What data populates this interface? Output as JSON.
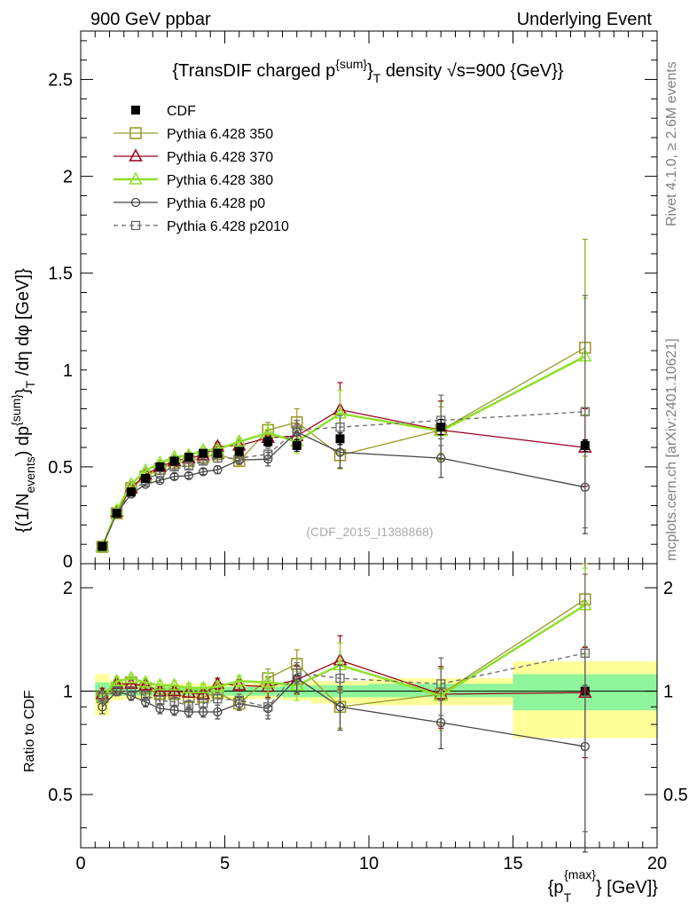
{
  "header": {
    "left": "900 GeV ppbar",
    "right": "Underlying Event"
  },
  "side_notes": {
    "rivet": "Rivet 4.1.0, ≥ 2.6M events",
    "mcplots": "mcplots.cern.ch [arXiv:2401.10621]"
  },
  "colors": {
    "cdf": "#000000",
    "p350": "#9a9a2a",
    "p370": "#99001a",
    "p380": "#8ee02a",
    "p0": "#444444",
    "p2010": "#666666",
    "band_inner": "#8ef59a",
    "band_outer": "#ffff9a"
  },
  "chart_data": [
    {
      "type": "line",
      "title": "{TransDIF charged p^{sum}_T density √s=900 {GeV}}",
      "title_parts": {
        "pre": "{TransDIF charged p",
        "sup": "{sum}",
        "mid": "}",
        "sub": "T",
        "post": " density √s=900 {GeV}}"
      },
      "ylabel": "{(1/N_events) dp^{sum}_T /dη dφ [GeV]}",
      "ylabel_parts": {
        "a": "{(1/N",
        "a_sub": "events",
        "b": ") dp",
        "b_sup": "{sum}",
        "c": "}",
        "c_sub": "T",
        "d": " /dη  dφ [GeV]}"
      },
      "xlim": [
        0,
        20
      ],
      "ylim": [
        0,
        2.75
      ],
      "yticks": [
        0.5,
        1,
        1.5,
        2,
        2.5
      ],
      "ytick_labels": [
        "0.5",
        "1",
        "1.5",
        "2",
        "2.5"
      ],
      "y0_label": "0",
      "watermark": "(CDF_2015_I1388868)",
      "legend_position": "top-left",
      "series": [
        {
          "key": "cdf",
          "name": "CDF",
          "marker": "filled-square",
          "line": "none",
          "x": [
            0.75,
            1.25,
            1.75,
            2.25,
            2.75,
            3.25,
            3.75,
            4.25,
            4.75,
            5.5,
            6.5,
            7.5,
            9.0,
            12.5,
            17.5
          ],
          "y": [
            0.09,
            0.26,
            0.37,
            0.44,
            0.5,
            0.53,
            0.55,
            0.57,
            0.57,
            0.58,
            0.63,
            0.61,
            0.645,
            0.705,
            0.61
          ],
          "yerr": [
            0.01,
            0.015,
            0.015,
            0.015,
            0.015,
            0.015,
            0.015,
            0.015,
            0.02,
            0.02,
            0.025,
            0.03,
            0.03,
            0.04,
            0.03
          ]
        },
        {
          "key": "p350",
          "name": "Pythia 6.428 350",
          "marker": "open-square",
          "line": "solid",
          "x": [
            0.75,
            1.25,
            1.75,
            2.25,
            2.75,
            3.25,
            3.75,
            4.25,
            4.75,
            5.5,
            6.5,
            7.5,
            9.0,
            12.5,
            17.5
          ],
          "y": [
            0.087,
            0.26,
            0.39,
            0.45,
            0.49,
            0.52,
            0.53,
            0.55,
            0.565,
            0.53,
            0.69,
            0.73,
            0.56,
            0.69,
            1.115
          ],
          "yerr": [
            0.005,
            0.01,
            0.01,
            0.01,
            0.01,
            0.015,
            0.015,
            0.015,
            0.02,
            0.02,
            0.04,
            0.07,
            0.07,
            0.12,
            0.56
          ]
        },
        {
          "key": "p370",
          "name": "Pythia 6.428 370",
          "marker": "open-triangle",
          "line": "solid",
          "x": [
            0.75,
            1.25,
            1.75,
            2.25,
            2.75,
            3.25,
            3.75,
            4.25,
            4.75,
            5.5,
            6.5,
            7.5,
            9.0,
            12.5,
            17.5
          ],
          "y": [
            0.088,
            0.27,
            0.39,
            0.46,
            0.5,
            0.53,
            0.545,
            0.56,
            0.605,
            0.61,
            0.65,
            0.66,
            0.795,
            0.69,
            0.6
          ],
          "yerr": [
            0.005,
            0.01,
            0.01,
            0.01,
            0.01,
            0.015,
            0.015,
            0.015,
            0.02,
            0.02,
            0.04,
            0.06,
            0.14,
            0.15,
            0.2
          ]
        },
        {
          "key": "p380",
          "name": "Pythia 6.428 380",
          "marker": "open-triangle",
          "line": "solid-thick",
          "x": [
            0.75,
            1.25,
            1.75,
            2.25,
            2.75,
            3.25,
            3.75,
            4.25,
            4.75,
            5.5,
            6.5,
            7.5,
            9.0,
            12.5,
            17.5
          ],
          "y": [
            0.087,
            0.275,
            0.41,
            0.48,
            0.52,
            0.55,
            0.56,
            0.585,
            0.59,
            0.63,
            0.675,
            0.63,
            0.775,
            0.685,
            1.07
          ],
          "yerr": [
            0.005,
            0.01,
            0.01,
            0.01,
            0.01,
            0.015,
            0.015,
            0.015,
            0.02,
            0.02,
            0.04,
            0.06,
            0.12,
            0.15,
            0.3
          ]
        },
        {
          "key": "p0",
          "name": "Pythia 6.428 p0",
          "marker": "open-circle",
          "line": "solid",
          "x": [
            0.75,
            1.25,
            1.75,
            2.25,
            2.75,
            3.25,
            3.75,
            4.25,
            4.75,
            5.5,
            6.5,
            7.5,
            9.0,
            12.5,
            17.5
          ],
          "y": [
            0.088,
            0.26,
            0.36,
            0.41,
            0.43,
            0.45,
            0.455,
            0.475,
            0.485,
            0.535,
            0.54,
            0.68,
            0.575,
            0.545,
            0.395
          ],
          "yerr": [
            0.005,
            0.01,
            0.01,
            0.01,
            0.01,
            0.015,
            0.015,
            0.015,
            0.02,
            0.02,
            0.035,
            0.06,
            0.08,
            0.1,
            0.24
          ]
        },
        {
          "key": "p2010",
          "name": "Pythia 6.428 p2010",
          "marker": "open-square-small",
          "line": "dashed",
          "x": [
            0.75,
            1.25,
            1.75,
            2.25,
            2.75,
            3.25,
            3.75,
            4.25,
            4.75,
            5.5,
            6.5,
            7.5,
            9.0,
            12.5,
            17.5
          ],
          "y": [
            0.087,
            0.26,
            0.37,
            0.43,
            0.47,
            0.5,
            0.505,
            0.53,
            0.545,
            0.545,
            0.565,
            0.69,
            0.705,
            0.74,
            0.785
          ],
          "yerr": [
            0.005,
            0.01,
            0.01,
            0.01,
            0.01,
            0.015,
            0.015,
            0.015,
            0.02,
            0.02,
            0.03,
            0.05,
            0.06,
            0.13,
            0.6
          ]
        }
      ]
    },
    {
      "type": "line",
      "ylabel": "Ratio to CDF",
      "xlabel_parts": {
        "a": "{p",
        "sub": "T",
        "sup": "{max}",
        "b": "} [GeV]}"
      },
      "xlim": [
        0,
        20
      ],
      "ylim": [
        0.35,
        2.35
      ],
      "yticks": [
        0.5,
        1,
        2
      ],
      "ytick_labels": [
        "0.5",
        "1",
        "2"
      ],
      "xticks": [
        0,
        5,
        10,
        15,
        20
      ],
      "xtick_labels": [
        "0",
        "5",
        "10",
        "15",
        "20"
      ],
      "reference": 1,
      "bands": [
        {
          "xlo": 0.5,
          "xhi": 1.0,
          "inner": [
            0.95,
            1.06
          ],
          "outer": [
            0.85,
            1.12
          ]
        },
        {
          "xlo": 1.0,
          "xhi": 1.5,
          "inner": [
            0.97,
            1.04
          ],
          "outer": [
            0.94,
            1.07
          ]
        },
        {
          "xlo": 1.5,
          "xhi": 2.0,
          "inner": [
            0.97,
            1.03
          ],
          "outer": [
            0.95,
            1.05
          ]
        },
        {
          "xlo": 2.0,
          "xhi": 2.5,
          "inner": [
            0.97,
            1.03
          ],
          "outer": [
            0.95,
            1.05
          ]
        },
        {
          "xlo": 2.5,
          "xhi": 3.0,
          "inner": [
            0.97,
            1.03
          ],
          "outer": [
            0.95,
            1.05
          ]
        },
        {
          "xlo": 3.0,
          "xhi": 3.5,
          "inner": [
            0.97,
            1.03
          ],
          "outer": [
            0.95,
            1.05
          ]
        },
        {
          "xlo": 3.5,
          "xhi": 4.0,
          "inner": [
            0.97,
            1.03
          ],
          "outer": [
            0.95,
            1.05
          ]
        },
        {
          "xlo": 4.0,
          "xhi": 4.5,
          "inner": [
            0.97,
            1.03
          ],
          "outer": [
            0.95,
            1.05
          ]
        },
        {
          "xlo": 4.5,
          "xhi": 5.0,
          "inner": [
            0.97,
            1.03
          ],
          "outer": [
            0.95,
            1.05
          ]
        },
        {
          "xlo": 5.0,
          "xhi": 6.0,
          "inner": [
            0.97,
            1.03
          ],
          "outer": [
            0.95,
            1.05
          ]
        },
        {
          "xlo": 6.0,
          "xhi": 7.0,
          "inner": [
            0.97,
            1.03
          ],
          "outer": [
            0.95,
            1.06
          ]
        },
        {
          "xlo": 7.0,
          "xhi": 8.0,
          "inner": [
            0.96,
            1.04
          ],
          "outer": [
            0.94,
            1.06
          ]
        },
        {
          "xlo": 8.0,
          "xhi": 10.0,
          "inner": [
            0.96,
            1.04
          ],
          "outer": [
            0.92,
            1.07
          ]
        },
        {
          "xlo": 10.0,
          "xhi": 15.0,
          "inner": [
            0.96,
            1.05
          ],
          "outer": [
            0.91,
            1.09
          ]
        },
        {
          "xlo": 15.0,
          "xhi": 20.0,
          "inner": [
            0.88,
            1.12
          ],
          "outer": [
            0.73,
            1.22
          ]
        }
      ],
      "series": [
        {
          "key": "cdf",
          "x": [
            17.5
          ],
          "y": [
            1.0
          ],
          "yerr": [
            0
          ]
        },
        {
          "key": "p350",
          "x": [
            0.75,
            1.25,
            1.75,
            2.25,
            2.75,
            3.25,
            3.75,
            4.25,
            4.75,
            5.5,
            6.5,
            7.5,
            9.0,
            12.5,
            17.5
          ],
          "y": [
            0.96,
            1.02,
            1.06,
            1.02,
            0.98,
            0.98,
            0.96,
            0.96,
            0.99,
            0.92,
            1.09,
            1.2,
            0.9,
            0.98,
            1.85
          ],
          "yerr": [
            0.04,
            0.03,
            0.03,
            0.03,
            0.03,
            0.03,
            0.03,
            0.03,
            0.04,
            0.04,
            0.07,
            0.12,
            0.12,
            0.18,
            0.5
          ]
        },
        {
          "key": "p370",
          "x": [
            0.75,
            1.25,
            1.75,
            2.25,
            2.75,
            3.25,
            3.75,
            4.25,
            4.75,
            5.5,
            6.5,
            7.5,
            9.0,
            12.5,
            17.5
          ],
          "y": [
            0.98,
            1.05,
            1.05,
            1.04,
            1.0,
            1.0,
            0.99,
            0.98,
            1.05,
            1.04,
            1.03,
            1.08,
            1.23,
            0.98,
            0.99
          ],
          "yerr": [
            0.04,
            0.03,
            0.03,
            0.03,
            0.03,
            0.03,
            0.03,
            0.03,
            0.04,
            0.04,
            0.07,
            0.1,
            0.22,
            0.2,
            0.35
          ]
        },
        {
          "key": "p380",
          "x": [
            0.75,
            1.25,
            1.75,
            2.25,
            2.75,
            3.25,
            3.75,
            4.25,
            4.75,
            5.5,
            6.5,
            7.5,
            9.0,
            12.5,
            17.5
          ],
          "y": [
            0.96,
            1.07,
            1.09,
            1.06,
            1.04,
            1.04,
            1.02,
            1.02,
            1.03,
            1.07,
            1.06,
            1.04,
            1.19,
            0.97,
            1.78
          ],
          "yerr": [
            0.04,
            0.03,
            0.03,
            0.03,
            0.03,
            0.03,
            0.03,
            0.03,
            0.04,
            0.04,
            0.07,
            0.1,
            0.19,
            0.2,
            0.5
          ]
        },
        {
          "key": "p0",
          "x": [
            0.75,
            1.25,
            1.75,
            2.25,
            2.75,
            3.25,
            3.75,
            4.25,
            4.75,
            5.5,
            6.5,
            7.5,
            9.0,
            12.5,
            17.5
          ],
          "y": [
            0.9,
            1.0,
            0.97,
            0.93,
            0.89,
            0.88,
            0.87,
            0.87,
            0.87,
            0.92,
            0.89,
            1.09,
            0.9,
            0.81,
            0.69
          ],
          "yerr": [
            0.04,
            0.03,
            0.03,
            0.03,
            0.03,
            0.03,
            0.03,
            0.03,
            0.04,
            0.04,
            0.06,
            0.1,
            0.13,
            0.13,
            0.35
          ]
        },
        {
          "key": "p2010",
          "x": [
            0.75,
            1.25,
            1.75,
            2.25,
            2.75,
            3.25,
            3.75,
            4.25,
            4.75,
            5.5,
            6.5,
            7.5,
            9.0,
            12.5,
            17.5
          ],
          "y": [
            0.96,
            1.0,
            1.0,
            0.97,
            0.94,
            0.93,
            0.91,
            0.92,
            0.95,
            0.94,
            0.9,
            1.13,
            1.09,
            1.05,
            1.29
          ],
          "yerr": [
            0.04,
            0.03,
            0.03,
            0.03,
            0.03,
            0.03,
            0.03,
            0.03,
            0.04,
            0.04,
            0.05,
            0.08,
            0.1,
            0.2,
            0.9
          ]
        }
      ]
    }
  ]
}
